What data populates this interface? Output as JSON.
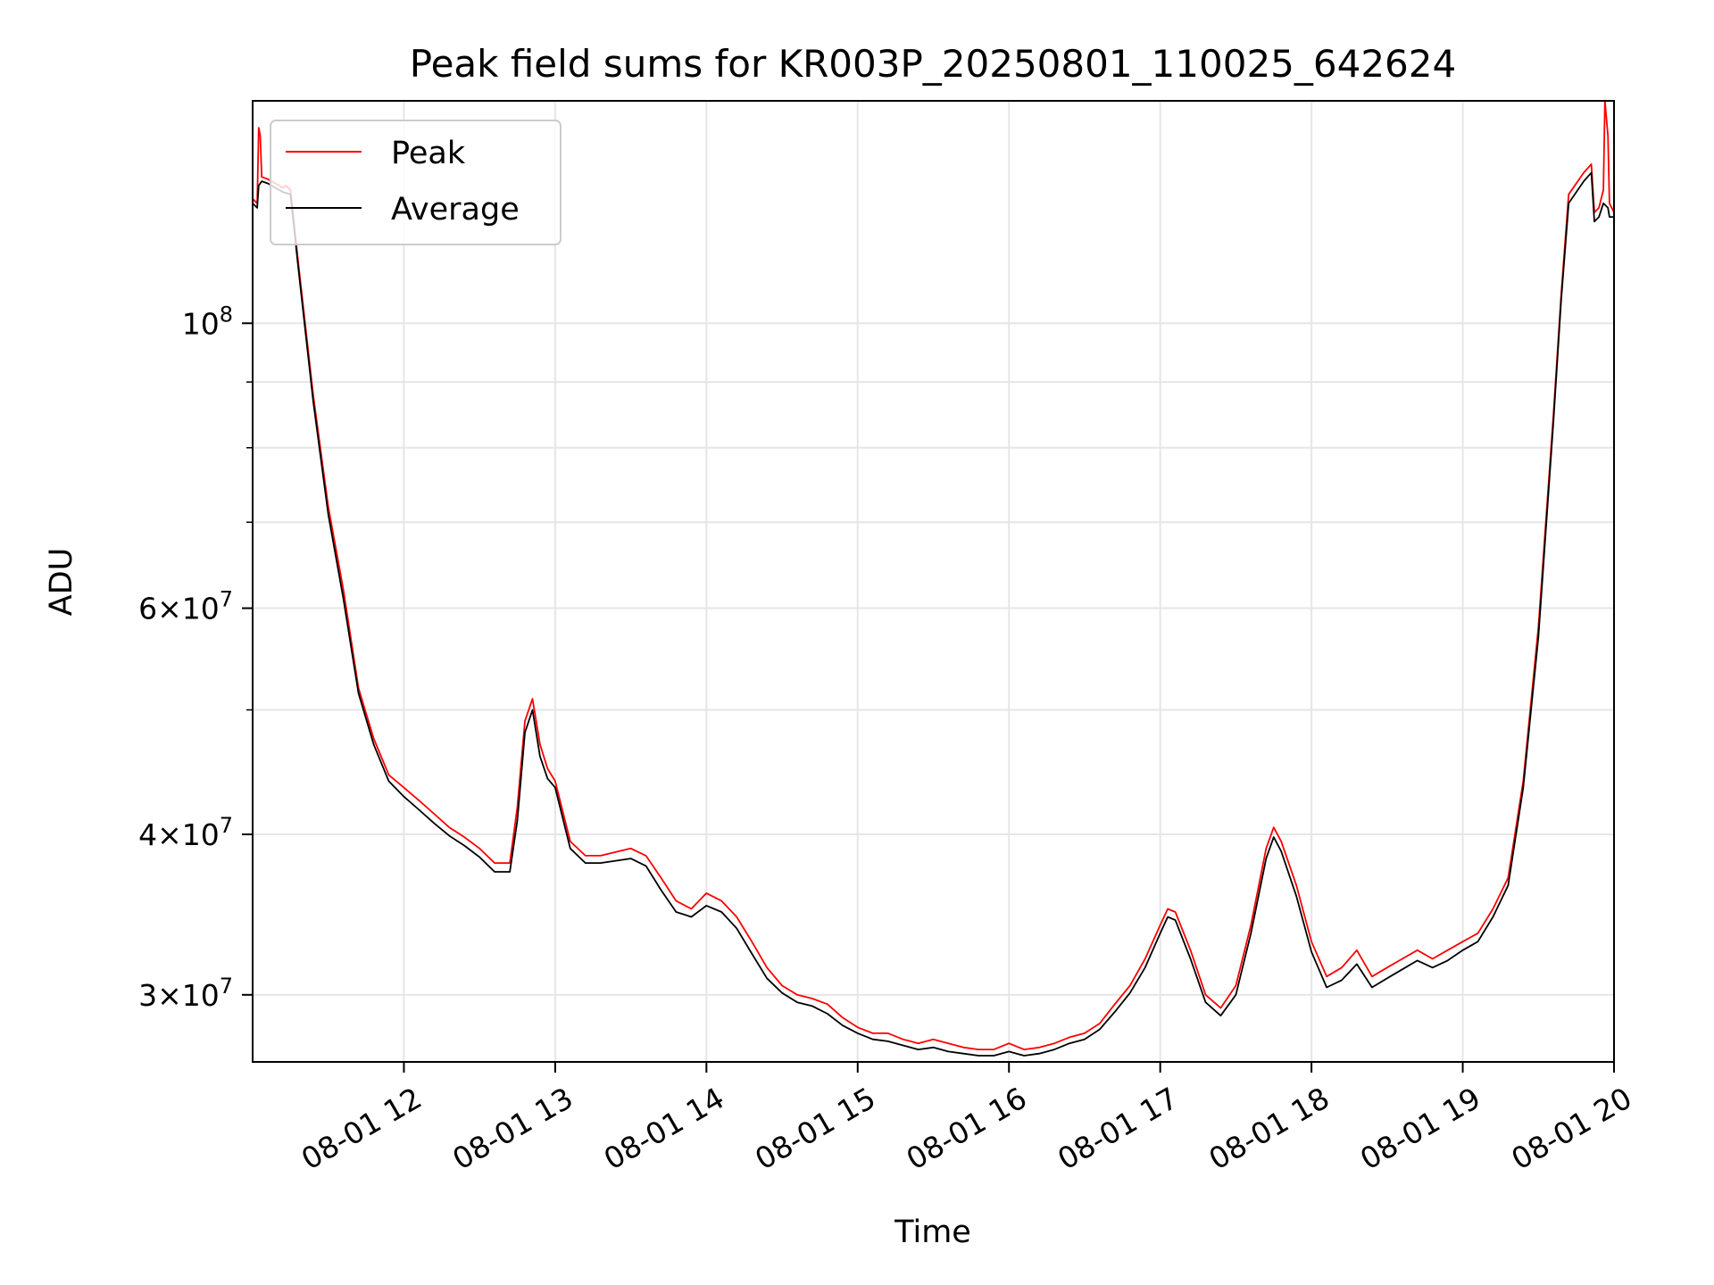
{
  "chart_data": {
    "type": "line",
    "title": "Peak field sums for KR003P_20250801_110025_642624",
    "xlabel": "Time",
    "ylabel": "ADU",
    "yscale": "log",
    "grid": true,
    "legend_position": "upper-left",
    "x_unit": "hours (time of day, 2025-08-01)",
    "xlim": [
      11.0,
      20.0
    ],
    "ylim": [
      26600000,
      149000000
    ],
    "x_ticks": [
      {
        "value": 12,
        "label": "08-01 12"
      },
      {
        "value": 13,
        "label": "08-01 13"
      },
      {
        "value": 14,
        "label": "08-01 14"
      },
      {
        "value": 15,
        "label": "08-01 15"
      },
      {
        "value": 16,
        "label": "08-01 16"
      },
      {
        "value": 17,
        "label": "08-01 17"
      },
      {
        "value": 18,
        "label": "08-01 18"
      },
      {
        "value": 19,
        "label": "08-01 19"
      },
      {
        "value": 20,
        "label": "08-01 20"
      }
    ],
    "y_major_ticks": [
      {
        "value": 30000000,
        "mantissa": "3",
        "exponent": "7"
      },
      {
        "value": 40000000,
        "mantissa": "4",
        "exponent": "7"
      },
      {
        "value": 60000000,
        "mantissa": "6",
        "exponent": "7"
      },
      {
        "value": 100000000,
        "mantissa": "",
        "exponent": "8"
      }
    ],
    "y_minor_ticks": [
      50000000,
      70000000,
      80000000,
      90000000
    ],
    "series": [
      {
        "name": "Peak",
        "color": "#ff0000",
        "points": [
          [
            11.0,
            125000000
          ],
          [
            11.03,
            124000000
          ],
          [
            11.04,
            142000000
          ],
          [
            11.05,
            140000000
          ],
          [
            11.06,
            130000000
          ],
          [
            11.1,
            129500000
          ],
          [
            11.15,
            128500000
          ],
          [
            11.2,
            127500000
          ],
          [
            11.22,
            128000000
          ],
          [
            11.25,
            127000000
          ],
          [
            11.3,
            112000000
          ],
          [
            11.4,
            88000000
          ],
          [
            11.5,
            72000000
          ],
          [
            11.6,
            62000000
          ],
          [
            11.7,
            52000000
          ],
          [
            11.8,
            47500000
          ],
          [
            11.9,
            44500000
          ],
          [
            12.0,
            43500000
          ],
          [
            12.1,
            42500000
          ],
          [
            12.2,
            41500000
          ],
          [
            12.3,
            40500000
          ],
          [
            12.4,
            39800000
          ],
          [
            12.5,
            39000000
          ],
          [
            12.6,
            38000000
          ],
          [
            12.7,
            38000000
          ],
          [
            12.75,
            42000000
          ],
          [
            12.8,
            49000000
          ],
          [
            12.85,
            51000000
          ],
          [
            12.9,
            47000000
          ],
          [
            12.95,
            45000000
          ],
          [
            13.0,
            44000000
          ],
          [
            13.1,
            39500000
          ],
          [
            13.2,
            38500000
          ],
          [
            13.3,
            38500000
          ],
          [
            13.5,
            39000000
          ],
          [
            13.6,
            38500000
          ],
          [
            13.7,
            37000000
          ],
          [
            13.8,
            35500000
          ],
          [
            13.9,
            35000000
          ],
          [
            14.0,
            36000000
          ],
          [
            14.1,
            35500000
          ],
          [
            14.2,
            34500000
          ],
          [
            14.3,
            33000000
          ],
          [
            14.4,
            31500000
          ],
          [
            14.5,
            30500000
          ],
          [
            14.6,
            30000000
          ],
          [
            14.7,
            29800000
          ],
          [
            14.8,
            29500000
          ],
          [
            14.9,
            28800000
          ],
          [
            15.0,
            28300000
          ],
          [
            15.1,
            28000000
          ],
          [
            15.2,
            28000000
          ],
          [
            15.3,
            27700000
          ],
          [
            15.4,
            27500000
          ],
          [
            15.5,
            27700000
          ],
          [
            15.6,
            27500000
          ],
          [
            15.7,
            27300000
          ],
          [
            15.8,
            27200000
          ],
          [
            15.9,
            27200000
          ],
          [
            16.0,
            27500000
          ],
          [
            16.1,
            27200000
          ],
          [
            16.2,
            27300000
          ],
          [
            16.3,
            27500000
          ],
          [
            16.4,
            27800000
          ],
          [
            16.5,
            28000000
          ],
          [
            16.6,
            28500000
          ],
          [
            16.7,
            29500000
          ],
          [
            16.8,
            30500000
          ],
          [
            16.9,
            32000000
          ],
          [
            17.0,
            34000000
          ],
          [
            17.05,
            35000000
          ],
          [
            17.1,
            34800000
          ],
          [
            17.2,
            32500000
          ],
          [
            17.3,
            30000000
          ],
          [
            17.4,
            29300000
          ],
          [
            17.5,
            30500000
          ],
          [
            17.6,
            34000000
          ],
          [
            17.7,
            39000000
          ],
          [
            17.75,
            40500000
          ],
          [
            17.8,
            39500000
          ],
          [
            17.9,
            36500000
          ],
          [
            18.0,
            33000000
          ],
          [
            18.1,
            31000000
          ],
          [
            18.2,
            31500000
          ],
          [
            18.3,
            32500000
          ],
          [
            18.4,
            31000000
          ],
          [
            18.5,
            31500000
          ],
          [
            18.6,
            32000000
          ],
          [
            18.7,
            32500000
          ],
          [
            18.8,
            32000000
          ],
          [
            18.9,
            32500000
          ],
          [
            19.0,
            33000000
          ],
          [
            19.1,
            33500000
          ],
          [
            19.2,
            35000000
          ],
          [
            19.3,
            37000000
          ],
          [
            19.4,
            44000000
          ],
          [
            19.5,
            58000000
          ],
          [
            19.6,
            85000000
          ],
          [
            19.65,
            105000000
          ],
          [
            19.7,
            126000000
          ],
          [
            19.8,
            131000000
          ],
          [
            19.85,
            133000000
          ],
          [
            19.87,
            122000000
          ],
          [
            19.9,
            123000000
          ],
          [
            19.93,
            127000000
          ],
          [
            19.94,
            149000000
          ],
          [
            19.96,
            140000000
          ],
          [
            19.97,
            124000000
          ],
          [
            20.0,
            122000000
          ]
        ]
      },
      {
        "name": "Average",
        "color": "#000000",
        "points": [
          [
            11.0,
            124000000
          ],
          [
            11.03,
            123000000
          ],
          [
            11.04,
            128000000
          ],
          [
            11.06,
            129000000
          ],
          [
            11.1,
            128500000
          ],
          [
            11.15,
            127500000
          ],
          [
            11.2,
            126500000
          ],
          [
            11.25,
            126000000
          ],
          [
            11.3,
            111000000
          ],
          [
            11.4,
            87000000
          ],
          [
            11.5,
            71000000
          ],
          [
            11.6,
            61000000
          ],
          [
            11.7,
            51500000
          ],
          [
            11.8,
            47000000
          ],
          [
            11.9,
            44000000
          ],
          [
            12.0,
            42800000
          ],
          [
            12.1,
            41800000
          ],
          [
            12.2,
            40800000
          ],
          [
            12.3,
            39900000
          ],
          [
            12.4,
            39200000
          ],
          [
            12.5,
            38400000
          ],
          [
            12.6,
            37400000
          ],
          [
            12.7,
            37400000
          ],
          [
            12.75,
            41000000
          ],
          [
            12.8,
            48000000
          ],
          [
            12.85,
            50000000
          ],
          [
            12.9,
            46000000
          ],
          [
            12.95,
            44200000
          ],
          [
            13.0,
            43500000
          ],
          [
            13.1,
            39000000
          ],
          [
            13.2,
            38000000
          ],
          [
            13.3,
            38000000
          ],
          [
            13.5,
            38300000
          ],
          [
            13.6,
            37800000
          ],
          [
            13.7,
            36200000
          ],
          [
            13.8,
            34800000
          ],
          [
            13.9,
            34500000
          ],
          [
            14.0,
            35200000
          ],
          [
            14.1,
            34800000
          ],
          [
            14.2,
            33800000
          ],
          [
            14.3,
            32300000
          ],
          [
            14.4,
            30900000
          ],
          [
            14.5,
            30100000
          ],
          [
            14.6,
            29600000
          ],
          [
            14.7,
            29400000
          ],
          [
            14.8,
            29000000
          ],
          [
            14.9,
            28400000
          ],
          [
            15.0,
            28000000
          ],
          [
            15.1,
            27700000
          ],
          [
            15.2,
            27600000
          ],
          [
            15.3,
            27400000
          ],
          [
            15.4,
            27200000
          ],
          [
            15.5,
            27300000
          ],
          [
            15.6,
            27100000
          ],
          [
            15.7,
            27000000
          ],
          [
            15.8,
            26900000
          ],
          [
            15.9,
            26900000
          ],
          [
            16.0,
            27100000
          ],
          [
            16.1,
            26900000
          ],
          [
            16.2,
            27000000
          ],
          [
            16.3,
            27200000
          ],
          [
            16.4,
            27500000
          ],
          [
            16.5,
            27700000
          ],
          [
            16.6,
            28200000
          ],
          [
            16.7,
            29100000
          ],
          [
            16.8,
            30100000
          ],
          [
            16.9,
            31500000
          ],
          [
            17.0,
            33500000
          ],
          [
            17.05,
            34500000
          ],
          [
            17.1,
            34300000
          ],
          [
            17.2,
            32000000
          ],
          [
            17.3,
            29600000
          ],
          [
            17.4,
            28900000
          ],
          [
            17.5,
            30000000
          ],
          [
            17.6,
            33500000
          ],
          [
            17.7,
            38300000
          ],
          [
            17.75,
            39800000
          ],
          [
            17.8,
            38800000
          ],
          [
            17.9,
            35800000
          ],
          [
            18.0,
            32400000
          ],
          [
            18.1,
            30400000
          ],
          [
            18.2,
            30800000
          ],
          [
            18.3,
            31700000
          ],
          [
            18.4,
            30400000
          ],
          [
            18.5,
            30900000
          ],
          [
            18.6,
            31400000
          ],
          [
            18.7,
            31900000
          ],
          [
            18.8,
            31500000
          ],
          [
            18.9,
            31900000
          ],
          [
            19.0,
            32500000
          ],
          [
            19.1,
            33000000
          ],
          [
            19.2,
            34500000
          ],
          [
            19.3,
            36500000
          ],
          [
            19.4,
            43500000
          ],
          [
            19.5,
            57000000
          ],
          [
            19.6,
            84000000
          ],
          [
            19.65,
            104000000
          ],
          [
            19.7,
            124000000
          ],
          [
            19.8,
            129000000
          ],
          [
            19.85,
            131000000
          ],
          [
            19.87,
            120000000
          ],
          [
            19.9,
            121000000
          ],
          [
            19.93,
            124000000
          ],
          [
            19.96,
            123000000
          ],
          [
            19.97,
            121000000
          ],
          [
            20.0,
            121000000
          ]
        ]
      }
    ]
  }
}
